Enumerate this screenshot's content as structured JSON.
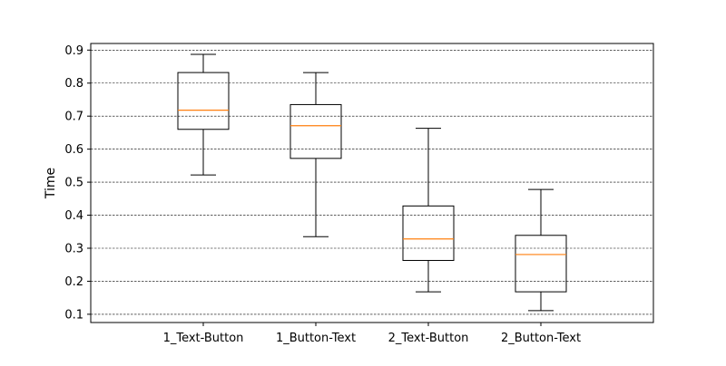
{
  "chart_data": {
    "type": "box",
    "title": "",
    "xlabel": "",
    "ylabel": "Time",
    "ylim": [
      0.075,
      0.92
    ],
    "yticks": [
      0.1,
      0.2,
      0.3,
      0.4,
      0.5,
      0.6,
      0.7,
      0.8,
      0.9
    ],
    "ytick_labels": [
      "0.1",
      "0.2",
      "0.3",
      "0.4",
      "0.5",
      "0.6",
      "0.7",
      "0.8",
      "0.9"
    ],
    "grid": "horizontal dashed",
    "categories": [
      "1_Text-Button",
      "1_Button-Text",
      "2_Text-Button",
      "2_Button-Text"
    ],
    "boxes": [
      {
        "name": "1_Text-Button",
        "whisker_low": 0.522,
        "q1": 0.66,
        "median": 0.718,
        "q3": 0.832,
        "whisker_high": 0.887
      },
      {
        "name": "1_Button-Text",
        "whisker_low": 0.335,
        "q1": 0.572,
        "median": 0.671,
        "q3": 0.735,
        "whisker_high": 0.832
      },
      {
        "name": "2_Text-Button",
        "whisker_low": 0.168,
        "q1": 0.263,
        "median": 0.328,
        "q3": 0.428,
        "whisker_high": 0.663
      },
      {
        "name": "2_Button-Text",
        "whisker_low": 0.111,
        "q1": 0.168,
        "median": 0.281,
        "q3": 0.339,
        "whisker_high": 0.478
      }
    ],
    "colors": {
      "box": "#000000",
      "median": "#ff7f0e",
      "grid": "#000000"
    }
  }
}
